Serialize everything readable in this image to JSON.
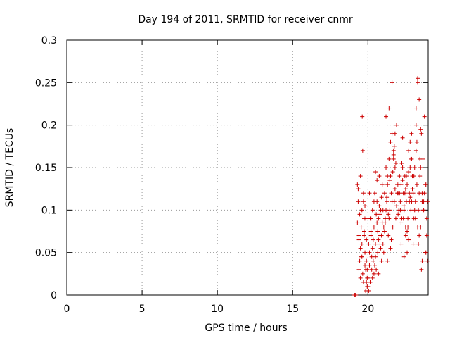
{
  "chart_data": {
    "type": "scatter",
    "title": "Day 194 of 2011, SRMTID for receiver cnmr",
    "xlabel": "GPS time / hours",
    "ylabel": "SRMTID / TECUs",
    "xlim": [
      0,
      24
    ],
    "ylim": [
      0,
      0.3
    ],
    "x_ticks": [
      0,
      5,
      10,
      15,
      20
    ],
    "x_tick_labels": [
      "0",
      "5",
      "10",
      "15",
      "20"
    ],
    "y_ticks": [
      0,
      0.05,
      0.1,
      0.15,
      0.2,
      0.25,
      0.3
    ],
    "y_tick_labels": [
      "0",
      "0.05",
      "0.1",
      "0.15",
      "0.2",
      "0.25",
      "0.3"
    ],
    "grid": true,
    "marker": "+",
    "color": "#cc0000",
    "series": [
      {
        "x": [
          19.1,
          19.15,
          19.2,
          19.3,
          19.35,
          19.4,
          19.45,
          19.5,
          19.55,
          19.6,
          19.62,
          19.65,
          19.7,
          19.75,
          19.8,
          19.85,
          19.9,
          19.95,
          19.3,
          19.4,
          19.5,
          19.6,
          19.7,
          19.8,
          19.9,
          19.35,
          19.45,
          19.55,
          19.65,
          19.75,
          19.85,
          19.95,
          19.5,
          19.7,
          19.75,
          19.85,
          19.9,
          19.95,
          19.4,
          19.6,
          19.8,
          20.0,
          20.05,
          20.1,
          20.15,
          20.2,
          20.25,
          20.3,
          20.35,
          20.4,
          20.45,
          20.5,
          20.55,
          20.6,
          20.65,
          20.7,
          20.75,
          20.8,
          20.85,
          20.9,
          20.95,
          20.0,
          20.1,
          20.2,
          20.3,
          20.4,
          20.5,
          20.6,
          20.7,
          20.8,
          20.9,
          20.05,
          20.15,
          20.25,
          20.35,
          20.45,
          20.55,
          20.65,
          20.75,
          20.85,
          20.95,
          20.1,
          20.3,
          20.5,
          20.7,
          20.9,
          20.2,
          20.4,
          20.6,
          20.8,
          21.0,
          21.05,
          21.1,
          21.15,
          21.2,
          21.25,
          21.3,
          21.35,
          21.4,
          21.45,
          21.5,
          21.55,
          21.6,
          21.65,
          21.7,
          21.75,
          21.8,
          21.85,
          21.9,
          21.95,
          21.0,
          21.1,
          21.2,
          21.3,
          21.4,
          21.5,
          21.6,
          21.7,
          21.8,
          21.9,
          21.05,
          21.15,
          21.25,
          21.35,
          21.45,
          21.55,
          21.65,
          21.75,
          21.85,
          21.95,
          21.2,
          21.4,
          21.6,
          21.8,
          21.3,
          21.5,
          21.7,
          21.9,
          22.0,
          22.05,
          22.1,
          22.15,
          22.2,
          22.25,
          22.3,
          22.35,
          22.4,
          22.45,
          22.5,
          22.55,
          22.6,
          22.65,
          22.7,
          22.75,
          22.8,
          22.85,
          22.9,
          22.95,
          22.0,
          22.1,
          22.2,
          22.3,
          22.4,
          22.5,
          22.6,
          22.7,
          22.8,
          22.9,
          22.05,
          22.15,
          22.25,
          22.35,
          22.45,
          22.55,
          22.65,
          22.75,
          22.85,
          22.95,
          22.2,
          22.4,
          22.6,
          22.8,
          22.3,
          22.5,
          22.7,
          22.9,
          23.0,
          23.05,
          23.1,
          23.15,
          23.2,
          23.25,
          23.3,
          23.35,
          23.4,
          23.45,
          23.5,
          23.55,
          23.6,
          23.65,
          23.7,
          23.75,
          23.8,
          23.85,
          23.9,
          23.95,
          23.0,
          23.1,
          23.2,
          23.3,
          23.4,
          23.5,
          23.6,
          23.7,
          23.8,
          23.9,
          23.05,
          23.15,
          23.25,
          23.35,
          23.45,
          23.55,
          23.65,
          23.75,
          23.85,
          23.95,
          23.2,
          23.3,
          23.4,
          23.5,
          23.6
        ],
        "y": [
          0.0,
          0.0,
          0.0,
          0.13,
          0.11,
          0.07,
          0.04,
          0.02,
          0.08,
          0.06,
          0.21,
          0.17,
          0.12,
          0.09,
          0.05,
          0.03,
          0.015,
          0.01,
          0.085,
          0.03,
          0.055,
          0.1,
          0.015,
          0.035,
          0.065,
          0.125,
          0.095,
          0.045,
          0.025,
          0.075,
          0.005,
          0.02,
          0.14,
          0.11,
          0.07,
          0.09,
          0.04,
          0.03,
          0.065,
          0.045,
          0.105,
          0.02,
          0.06,
          0.05,
          0.09,
          0.07,
          0.03,
          0.1,
          0.04,
          0.08,
          0.12,
          0.06,
          0.03,
          0.11,
          0.05,
          0.09,
          0.14,
          0.07,
          0.1,
          0.04,
          0.13,
          0.01,
          0.035,
          0.075,
          0.055,
          0.025,
          0.045,
          0.085,
          0.065,
          0.095,
          0.115,
          0.005,
          0.015,
          0.045,
          0.065,
          0.035,
          0.095,
          0.075,
          0.105,
          0.055,
          0.085,
          0.12,
          0.02,
          0.145,
          0.025,
          0.07,
          0.09,
          0.11,
          0.135,
          0.06,
          0.1,
          0.08,
          0.12,
          0.09,
          0.15,
          0.11,
          0.13,
          0.07,
          0.16,
          0.1,
          0.14,
          0.12,
          0.19,
          0.08,
          0.17,
          0.11,
          0.15,
          0.09,
          0.2,
          0.13,
          0.06,
          0.075,
          0.1,
          0.14,
          0.09,
          0.18,
          0.11,
          0.16,
          0.125,
          0.105,
          0.05,
          0.085,
          0.115,
          0.095,
          0.135,
          0.065,
          0.145,
          0.175,
          0.155,
          0.12,
          0.21,
          0.22,
          0.25,
          0.19,
          0.04,
          0.055,
          0.165,
          0.2,
          0.12,
          0.1,
          0.14,
          0.11,
          0.13,
          0.09,
          0.15,
          0.12,
          0.1,
          0.14,
          0.08,
          0.11,
          0.13,
          0.09,
          0.17,
          0.12,
          0.15,
          0.1,
          0.16,
          0.14,
          0.095,
          0.12,
          0.085,
          0.135,
          0.105,
          0.125,
          0.075,
          0.145,
          0.115,
          0.11,
          0.13,
          0.1,
          0.155,
          0.09,
          0.12,
          0.14,
          0.08,
          0.11,
          0.16,
          0.125,
          0.06,
          0.045,
          0.05,
          0.18,
          0.185,
          0.07,
          0.065,
          0.19,
          0.12,
          0.09,
          0.15,
          0.11,
          0.2,
          0.13,
          0.25,
          0.1,
          0.23,
          0.14,
          0.08,
          0.19,
          0.12,
          0.16,
          0.1,
          0.21,
          0.05,
          0.13,
          0.09,
          0.11,
          0.06,
          0.1,
          0.17,
          0.08,
          0.12,
          0.15,
          0.04,
          0.11,
          0.13,
          0.07,
          0.14,
          0.09,
          0.18,
          0.06,
          0.16,
          0.03,
          0.1,
          0.12,
          0.05,
          0.04,
          0.22,
          0.255,
          0.07,
          0.195,
          0.11
        ]
      }
    ]
  }
}
